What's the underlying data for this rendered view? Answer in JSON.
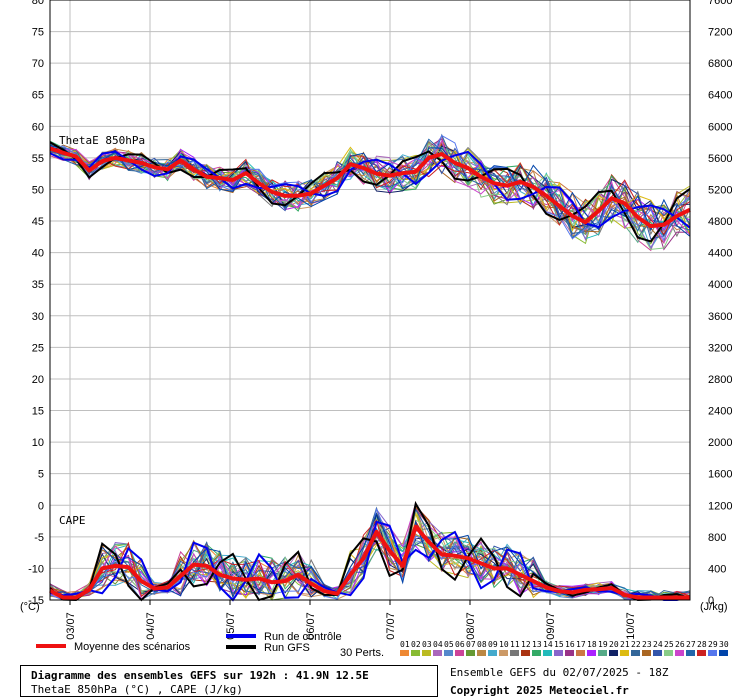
{
  "chart_data": {
    "type": "line",
    "left_axis": {
      "unit_label": "(°C)",
      "ticks": [
        80,
        75,
        70,
        65,
        60,
        55,
        50,
        45,
        40,
        35,
        30,
        25,
        20,
        15,
        10,
        5,
        0,
        -5,
        -10,
        -15
      ],
      "range": [
        -15,
        80
      ]
    },
    "right_axis": {
      "unit_label": "(J/kg)",
      "ticks": [
        7600,
        7200,
        6800,
        6400,
        6000,
        5600,
        5200,
        4800,
        4400,
        4000,
        3600,
        3200,
        2800,
        2400,
        2000,
        1600,
        1200,
        800,
        400,
        0
      ]
    },
    "x_axis": {
      "range_days": [
        2.75,
        10.75
      ],
      "ticks": [
        {
          "label": "03/07",
          "day": 3
        },
        {
          "label": "04/07",
          "day": 4
        },
        {
          "label": "05/07",
          "day": 5
        },
        {
          "label": "06/07",
          "day": 6
        },
        {
          "label": "07/07",
          "day": 7
        },
        {
          "label": "08/07",
          "day": 8
        },
        {
          "label": "09/07",
          "day": 9
        },
        {
          "label": "10/07",
          "day": 10
        }
      ]
    },
    "grid": true,
    "panels": {
      "thetae": {
        "label": "ThetaE 850hPa",
        "mean_series_values": [
          56.5,
          55.8,
          55.2,
          53.0,
          54.5,
          55.0,
          54.6,
          54.2,
          53.5,
          53.2,
          54.6,
          53.2,
          52.0,
          51.8,
          51.5,
          52.6,
          51.0,
          49.6,
          49.0,
          49.0,
          49.4,
          50.6,
          51.8,
          54.0,
          53.4,
          52.5,
          52.2,
          52.6,
          52.8,
          55.0,
          55.6,
          54.2,
          53.4,
          52.0,
          51.0,
          50.6,
          51.2,
          50.4,
          49.0,
          47.4,
          45.8,
          44.8,
          46.6,
          48.6,
          47.8,
          45.6,
          44.2,
          44.4,
          45.8,
          46.8
        ]
      },
      "cape": {
        "label": "CAPE",
        "mean_series_values": [
          -13.5,
          -14.6,
          -14.6,
          -13.4,
          -10.0,
          -9.6,
          -9.8,
          -12.0,
          -13.2,
          -13.0,
          -11.2,
          -9.4,
          -9.6,
          -11.0,
          -11.6,
          -11.8,
          -11.6,
          -12.2,
          -12.0,
          -11.0,
          -12.4,
          -13.6,
          -14.0,
          -11.0,
          -8.4,
          -4.2,
          -7.2,
          -9.6,
          -3.4,
          -5.8,
          -7.8,
          -8.0,
          -8.4,
          -9.2,
          -10.0,
          -10.0,
          -11.0,
          -12.0,
          -13.0,
          -13.6,
          -13.8,
          -13.4,
          -13.3,
          -13.1,
          -14.2,
          -14.6,
          -14.6,
          -14.6,
          -14.6,
          -14.6
        ]
      }
    }
  },
  "legend": {
    "mean_label": "Moyenne des scénarios",
    "control_label": "Run de contrôle",
    "gfs_label": "Run GFS",
    "perts_label": "30 Perts.",
    "pert_numbers": [
      "01",
      "02",
      "03",
      "04",
      "05",
      "06",
      "07",
      "08",
      "09",
      "10",
      "11",
      "12",
      "13",
      "14",
      "15",
      "16",
      "17",
      "18",
      "19",
      "20",
      "21",
      "22",
      "23",
      "24",
      "25",
      "26",
      "27",
      "28",
      "29",
      "30"
    ],
    "pert_colors": [
      "#ee8833",
      "#88bb33",
      "#bbbb22",
      "#aa66bb",
      "#5588cc",
      "#cc4499",
      "#669933",
      "#bb8844",
      "#44aacc",
      "#cc9966",
      "#777777",
      "#aa3311",
      "#33aa66",
      "#22bbbb",
      "#8866cc",
      "#993388",
      "#cc7744",
      "#aa22ff",
      "#55aa88",
      "#112266",
      "#ddbb11",
      "#336699",
      "#aa6622",
      "#3355aa",
      "#88cc88",
      "#cc44cc",
      "#2266aa",
      "#cc2222",
      "#5577ee",
      "#0044aa"
    ],
    "mean_color": "#ee1111",
    "control_color": "#0000ee",
    "gfs_color": "#000000"
  },
  "footer": {
    "title": "Diagramme des ensembles GEFS sur 192h : 41.9N 12.5E",
    "subtitle": "ThetaE 850hPa (°C) , CAPE (J/kg)",
    "run_info": "Ensemble GEFS du 02/07/2025 - 18Z",
    "copyright": "Copyright 2025 Meteociel.fr"
  }
}
